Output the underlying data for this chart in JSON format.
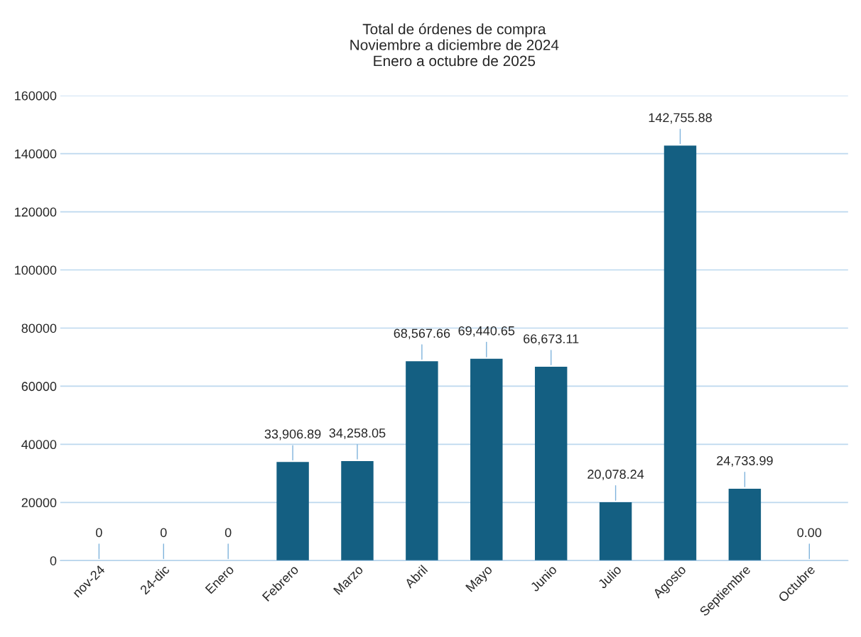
{
  "chart_data": {
    "type": "bar",
    "title": "Total de órdenes de compra\nNoviembre a diciembre de 2024\nEnero a octubre de 2025",
    "categories": [
      "nov-24",
      "24-dic",
      "Enero",
      "Febrero",
      "Marzo",
      "Abril",
      "Mayo",
      "Junio",
      "Julio",
      "Agosto",
      "Septiembre",
      "Octubre"
    ],
    "values": [
      0,
      0,
      0,
      33906.89,
      34258.05,
      68567.66,
      69440.65,
      66673.11,
      20078.24,
      142755.88,
      24733.99,
      0
    ],
    "value_labels": [
      "0",
      "0",
      "0",
      "33,906.89",
      "34,258.05",
      "68,567.66",
      "69,440.65",
      "66,673.11",
      "20,078.24",
      "142,755.88",
      "24,733.99",
      "0.00"
    ],
    "color": "#145f82",
    "ylim": [
      0,
      160000
    ],
    "yticks": [
      0,
      20000,
      40000,
      60000,
      80000,
      100000,
      120000,
      140000,
      160000
    ],
    "grid": "y",
    "legend": false
  }
}
